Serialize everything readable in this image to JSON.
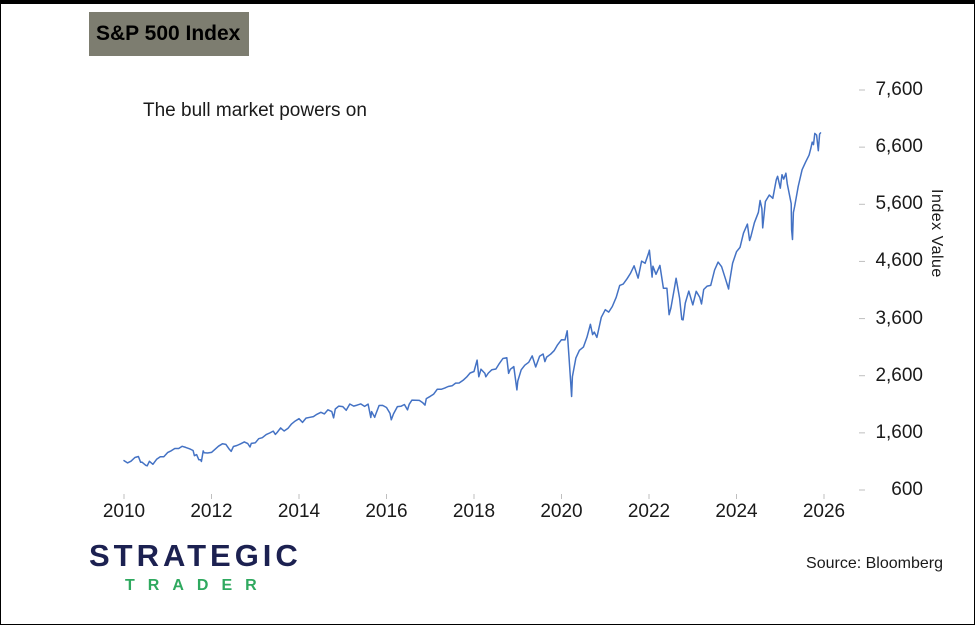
{
  "header": {
    "title": "S&P 500 Index",
    "subtitle": "The bull market powers on"
  },
  "footer": {
    "brand_line1": "STRATEGIC",
    "brand_line2": "TRADER",
    "source": "Source: Bloomberg"
  },
  "colors": {
    "line": "#4472c4",
    "title_box_bg": "#7d7d70",
    "brand_navy": "#1c2151",
    "brand_green": "#2fa95f",
    "axis_gray": "#bfbfbf"
  },
  "chart_data": {
    "type": "line",
    "title": "S&P 500 Index",
    "subtitle": "The bull market powers on",
    "series_name": "S&P 500 Index",
    "line_color": "#4472c4",
    "ylabel": "Index Value",
    "legend": "none",
    "grid": false,
    "ylim": [
      600,
      7600
    ],
    "xlim": [
      2010,
      2026
    ],
    "y_ticks": [
      "7,600",
      "6,600",
      "5,600",
      "4,600",
      "3,600",
      "2,600",
      "1,600",
      "600"
    ],
    "y_tick_values": [
      7600,
      6600,
      5600,
      4600,
      3600,
      2600,
      1600,
      600
    ],
    "x_ticks": [
      "2010",
      "2012",
      "2014",
      "2016",
      "2018",
      "2020",
      "2022",
      "2024",
      "2026"
    ],
    "x_tick_years": [
      2010,
      2012,
      2014,
      2016,
      2018,
      2020,
      2022,
      2024,
      2026
    ],
    "points": [
      [
        2010.0,
        1115
      ],
      [
        2010.08,
        1074
      ],
      [
        2010.16,
        1104
      ],
      [
        2010.25,
        1169
      ],
      [
        2010.33,
        1187
      ],
      [
        2010.38,
        1087
      ],
      [
        2010.41,
        1089
      ],
      [
        2010.5,
        1031
      ],
      [
        2010.53,
        1023
      ],
      [
        2010.58,
        1102
      ],
      [
        2010.66,
        1049
      ],
      [
        2010.75,
        1141
      ],
      [
        2010.83,
        1183
      ],
      [
        2010.91,
        1181
      ],
      [
        2011.0,
        1258
      ],
      [
        2011.08,
        1286
      ],
      [
        2011.16,
        1327
      ],
      [
        2011.25,
        1326
      ],
      [
        2011.33,
        1364
      ],
      [
        2011.41,
        1345
      ],
      [
        2011.5,
        1321
      ],
      [
        2011.58,
        1292
      ],
      [
        2011.61,
        1200
      ],
      [
        2011.66,
        1219
      ],
      [
        2011.71,
        1131
      ],
      [
        2011.75,
        1131
      ],
      [
        2011.77,
        1099
      ],
      [
        2011.81,
        1285
      ],
      [
        2011.83,
        1253
      ],
      [
        2011.91,
        1247
      ],
      [
        2012.0,
        1258
      ],
      [
        2012.08,
        1312
      ],
      [
        2012.16,
        1366
      ],
      [
        2012.25,
        1408
      ],
      [
        2012.33,
        1398
      ],
      [
        2012.41,
        1310
      ],
      [
        2012.45,
        1278
      ],
      [
        2012.5,
        1362
      ],
      [
        2012.58,
        1379
      ],
      [
        2012.66,
        1407
      ],
      [
        2012.75,
        1441
      ],
      [
        2012.83,
        1412
      ],
      [
        2012.88,
        1353
      ],
      [
        2012.91,
        1416
      ],
      [
        2013.0,
        1426
      ],
      [
        2013.08,
        1498
      ],
      [
        2013.16,
        1515
      ],
      [
        2013.25,
        1569
      ],
      [
        2013.33,
        1598
      ],
      [
        2013.41,
        1631
      ],
      [
        2013.46,
        1573
      ],
      [
        2013.5,
        1606
      ],
      [
        2013.58,
        1686
      ],
      [
        2013.66,
        1633
      ],
      [
        2013.75,
        1682
      ],
      [
        2013.83,
        1757
      ],
      [
        2013.91,
        1806
      ],
      [
        2014.0,
        1848
      ],
      [
        2014.08,
        1783
      ],
      [
        2014.16,
        1859
      ],
      [
        2014.25,
        1872
      ],
      [
        2014.33,
        1884
      ],
      [
        2014.41,
        1924
      ],
      [
        2014.5,
        1960
      ],
      [
        2014.58,
        1931
      ],
      [
        2014.66,
        2003
      ],
      [
        2014.75,
        1972
      ],
      [
        2014.79,
        1862
      ],
      [
        2014.83,
        2018
      ],
      [
        2014.91,
        2068
      ],
      [
        2015.0,
        2059
      ],
      [
        2015.08,
        1995
      ],
      [
        2015.16,
        2105
      ],
      [
        2015.25,
        2068
      ],
      [
        2015.33,
        2086
      ],
      [
        2015.41,
        2107
      ],
      [
        2015.5,
        2063
      ],
      [
        2015.58,
        2104
      ],
      [
        2015.64,
        1868
      ],
      [
        2015.66,
        1972
      ],
      [
        2015.73,
        1872
      ],
      [
        2015.75,
        1920
      ],
      [
        2015.83,
        2079
      ],
      [
        2015.91,
        2080
      ],
      [
        2016.0,
        2044
      ],
      [
        2016.08,
        1940
      ],
      [
        2016.11,
        1829
      ],
      [
        2016.16,
        1932
      ],
      [
        2016.25,
        2060
      ],
      [
        2016.33,
        2065
      ],
      [
        2016.41,
        2097
      ],
      [
        2016.48,
        2001
      ],
      [
        2016.52,
        2099
      ],
      [
        2016.58,
        2174
      ],
      [
        2016.66,
        2171
      ],
      [
        2016.75,
        2168
      ],
      [
        2016.83,
        2126
      ],
      [
        2016.88,
        2085
      ],
      [
        2016.91,
        2199
      ],
      [
        2017.0,
        2239
      ],
      [
        2017.08,
        2279
      ],
      [
        2017.16,
        2364
      ],
      [
        2017.25,
        2363
      ],
      [
        2017.33,
        2384
      ],
      [
        2017.41,
        2412
      ],
      [
        2017.5,
        2423
      ],
      [
        2017.58,
        2470
      ],
      [
        2017.66,
        2472
      ],
      [
        2017.75,
        2519
      ],
      [
        2017.83,
        2575
      ],
      [
        2017.91,
        2648
      ],
      [
        2018.0,
        2674
      ],
      [
        2018.07,
        2873
      ],
      [
        2018.11,
        2581
      ],
      [
        2018.16,
        2714
      ],
      [
        2018.25,
        2641
      ],
      [
        2018.27,
        2581
      ],
      [
        2018.33,
        2648
      ],
      [
        2018.41,
        2705
      ],
      [
        2018.5,
        2718
      ],
      [
        2018.58,
        2816
      ],
      [
        2018.66,
        2902
      ],
      [
        2018.75,
        2914
      ],
      [
        2018.79,
        2641
      ],
      [
        2018.83,
        2712
      ],
      [
        2018.91,
        2760
      ],
      [
        2018.98,
        2351
      ],
      [
        2019.0,
        2507
      ],
      [
        2019.08,
        2704
      ],
      [
        2019.16,
        2784
      ],
      [
        2019.25,
        2834
      ],
      [
        2019.33,
        2946
      ],
      [
        2019.41,
        2752
      ],
      [
        2019.5,
        2942
      ],
      [
        2019.58,
        2980
      ],
      [
        2019.62,
        2847
      ],
      [
        2019.66,
        2926
      ],
      [
        2019.75,
        2977
      ],
      [
        2019.83,
        3038
      ],
      [
        2019.91,
        3141
      ],
      [
        2020.0,
        3231
      ],
      [
        2020.08,
        3226
      ],
      [
        2020.13,
        3386
      ],
      [
        2020.17,
        2954
      ],
      [
        2020.21,
        2481
      ],
      [
        2020.23,
        2237
      ],
      [
        2020.25,
        2585
      ],
      [
        2020.33,
        2912
      ],
      [
        2020.41,
        3044
      ],
      [
        2020.5,
        3100
      ],
      [
        2020.58,
        3271
      ],
      [
        2020.66,
        3500
      ],
      [
        2020.71,
        3319
      ],
      [
        2020.75,
        3363
      ],
      [
        2020.81,
        3270
      ],
      [
        2020.91,
        3622
      ],
      [
        2021.0,
        3756
      ],
      [
        2021.08,
        3714
      ],
      [
        2021.16,
        3811
      ],
      [
        2021.25,
        3973
      ],
      [
        2021.33,
        4181
      ],
      [
        2021.41,
        4204
      ],
      [
        2021.5,
        4298
      ],
      [
        2021.58,
        4395
      ],
      [
        2021.66,
        4523
      ],
      [
        2021.75,
        4308
      ],
      [
        2021.83,
        4605
      ],
      [
        2021.91,
        4567
      ],
      [
        2022.0,
        4766
      ],
      [
        2022.01,
        4797
      ],
      [
        2022.07,
        4326
      ],
      [
        2022.09,
        4516
      ],
      [
        2022.16,
        4374
      ],
      [
        2022.25,
        4530
      ],
      [
        2022.33,
        4132
      ],
      [
        2022.41,
        4132
      ],
      [
        2022.46,
        3667
      ],
      [
        2022.5,
        3785
      ],
      [
        2022.58,
        4130
      ],
      [
        2022.62,
        4305
      ],
      [
        2022.7,
        3955
      ],
      [
        2022.75,
        3586
      ],
      [
        2022.78,
        3577
      ],
      [
        2022.83,
        3872
      ],
      [
        2022.91,
        4080
      ],
      [
        2023.0,
        3840
      ],
      [
        2023.08,
        4077
      ],
      [
        2023.16,
        3970
      ],
      [
        2023.2,
        3855
      ],
      [
        2023.25,
        4109
      ],
      [
        2023.33,
        4169
      ],
      [
        2023.41,
        4180
      ],
      [
        2023.5,
        4450
      ],
      [
        2023.58,
        4589
      ],
      [
        2023.66,
        4508
      ],
      [
        2023.75,
        4288
      ],
      [
        2023.82,
        4117
      ],
      [
        2023.83,
        4194
      ],
      [
        2023.91,
        4568
      ],
      [
        2024.0,
        4770
      ],
      [
        2024.08,
        4846
      ],
      [
        2024.16,
        5096
      ],
      [
        2024.25,
        5254
      ],
      [
        2024.3,
        4967
      ],
      [
        2024.33,
        5036
      ],
      [
        2024.41,
        5278
      ],
      [
        2024.5,
        5460
      ],
      [
        2024.54,
        5667
      ],
      [
        2024.58,
        5522
      ],
      [
        2024.6,
        5186
      ],
      [
        2024.66,
        5648
      ],
      [
        2024.75,
        5762
      ],
      [
        2024.83,
        5705
      ],
      [
        2024.91,
        6032
      ],
      [
        2024.94,
        6090
      ],
      [
        2025.0,
        5882
      ],
      [
        2025.04,
        6118
      ],
      [
        2025.08,
        6041
      ],
      [
        2025.13,
        6144
      ],
      [
        2025.16,
        5955
      ],
      [
        2025.25,
        5612
      ],
      [
        2025.26,
        5158
      ],
      [
        2025.28,
        4983
      ],
      [
        2025.3,
        5456
      ],
      [
        2025.33,
        5569
      ],
      [
        2025.41,
        5912
      ],
      [
        2025.5,
        6205
      ],
      [
        2025.58,
        6339
      ],
      [
        2025.66,
        6460
      ],
      [
        2025.7,
        6584
      ],
      [
        2025.73,
        6688
      ],
      [
        2025.76,
        6644
      ],
      [
        2025.79,
        6840
      ],
      [
        2025.83,
        6812
      ],
      [
        2025.87,
        6538
      ],
      [
        2025.9,
        6829
      ],
      [
        2025.92,
        6849
      ]
    ]
  }
}
